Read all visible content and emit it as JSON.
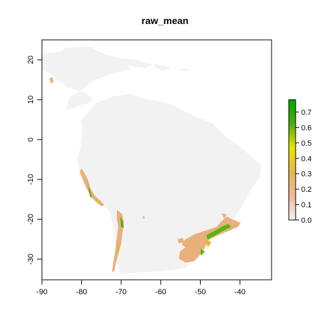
{
  "title": "raw_mean",
  "x_axis": {
    "ticks": [
      "-90",
      "-80",
      "-70",
      "-60",
      "-50",
      "-40"
    ],
    "values": [
      -90,
      -80,
      -70,
      -60,
      -50,
      -40
    ],
    "range": [
      -90,
      -38
    ]
  },
  "y_axis": {
    "ticks": [
      "20",
      "10",
      "0",
      "-10",
      "-20",
      "-30"
    ],
    "values": [
      20,
      10,
      0,
      -10,
      -20,
      -30
    ],
    "range": [
      -35,
      25
    ]
  },
  "legend": {
    "ticks": [
      "0.7",
      "0.6",
      "0.5",
      "0.4",
      "0.3",
      "0.2",
      "0.1",
      "0.0"
    ],
    "values": [
      0.7,
      0.6,
      0.5,
      0.4,
      0.3,
      0.2,
      0.1,
      0.0
    ],
    "range": [
      0.0,
      0.78
    ],
    "colors": [
      "#f2f2f2",
      "#eeb99f",
      "#eab64e",
      "#e6e600",
      "#9ac30b",
      "#4eab0f",
      "#00a600"
    ]
  },
  "colors": {
    "land": "#f2f2f2",
    "low": "#e8b07a",
    "mid": "#d8c11e",
    "high": "#55b40f"
  }
}
